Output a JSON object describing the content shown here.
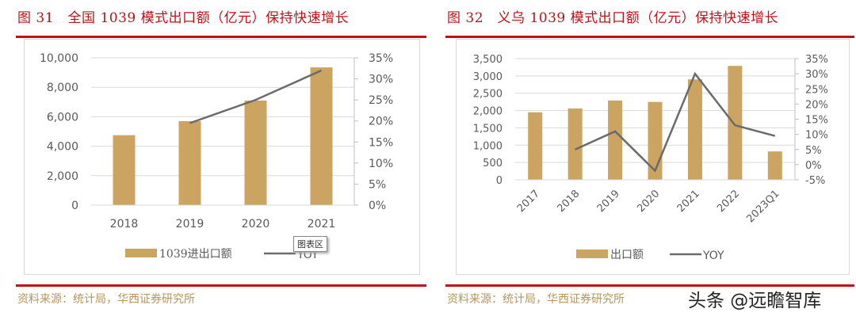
{
  "panels": [
    {
      "title": "图 31　全国 1039 模式出口额（亿元）保持快速增长",
      "source": "资料来源：统计局，华西证券研究所"
    },
    {
      "title": "图 32　义乌 1039 模式出口额（亿元）保持快速增长",
      "source": "资料来源：统计局，华西证券研究所"
    }
  ],
  "tooltip": "图表区",
  "watermark": "头条 @远瞻智库",
  "colors": {
    "bar": "#cca461",
    "line": "#6b6b6b",
    "accent": "#c0101a",
    "grid": "#d9d9d9"
  },
  "chart_data": [
    {
      "type": "bar+line",
      "categories": [
        "2018",
        "2019",
        "2020",
        "2021"
      ],
      "series": [
        {
          "name": "1039进出口额",
          "type": "bar",
          "axis": "left",
          "values": [
            4750,
            5700,
            7100,
            9350
          ]
        },
        {
          "name": "YOY",
          "type": "line",
          "axis": "right",
          "values": [
            null,
            19.5,
            25,
            32
          ]
        }
      ],
      "left_axis": {
        "range": [
          0,
          10000
        ],
        "ticks": [
          "0",
          "2,000",
          "4,000",
          "6,000",
          "8,000",
          "10,000"
        ]
      },
      "right_axis": {
        "range": [
          0,
          35
        ],
        "ticks": [
          "0%",
          "5%",
          "10%",
          "15%",
          "20%",
          "25%",
          "30%",
          "35%"
        ]
      },
      "grid": true,
      "legend": "bottom"
    },
    {
      "type": "bar+line",
      "categories": [
        "2017",
        "2018",
        "2019",
        "2020",
        "2021",
        "2022",
        "2023Q1"
      ],
      "series": [
        {
          "name": "出口额",
          "type": "bar",
          "axis": "left",
          "values": [
            1950,
            2060,
            2290,
            2250,
            2900,
            3290,
            820
          ]
        },
        {
          "name": "YOY",
          "type": "line",
          "axis": "right",
          "values": [
            null,
            5,
            11,
            -2,
            30,
            13,
            9.5
          ]
        }
      ],
      "left_axis": {
        "range": [
          0,
          3500
        ],
        "ticks": [
          "0",
          "500",
          "1,000",
          "1,500",
          "2,000",
          "2,500",
          "3,000",
          "3,500"
        ]
      },
      "right_axis": {
        "range": [
          -5,
          35
        ],
        "ticks": [
          "-5%",
          "0%",
          "5%",
          "10%",
          "15%",
          "20%",
          "25%",
          "30%",
          "35%"
        ]
      },
      "grid": true,
      "legend": "bottom"
    }
  ]
}
